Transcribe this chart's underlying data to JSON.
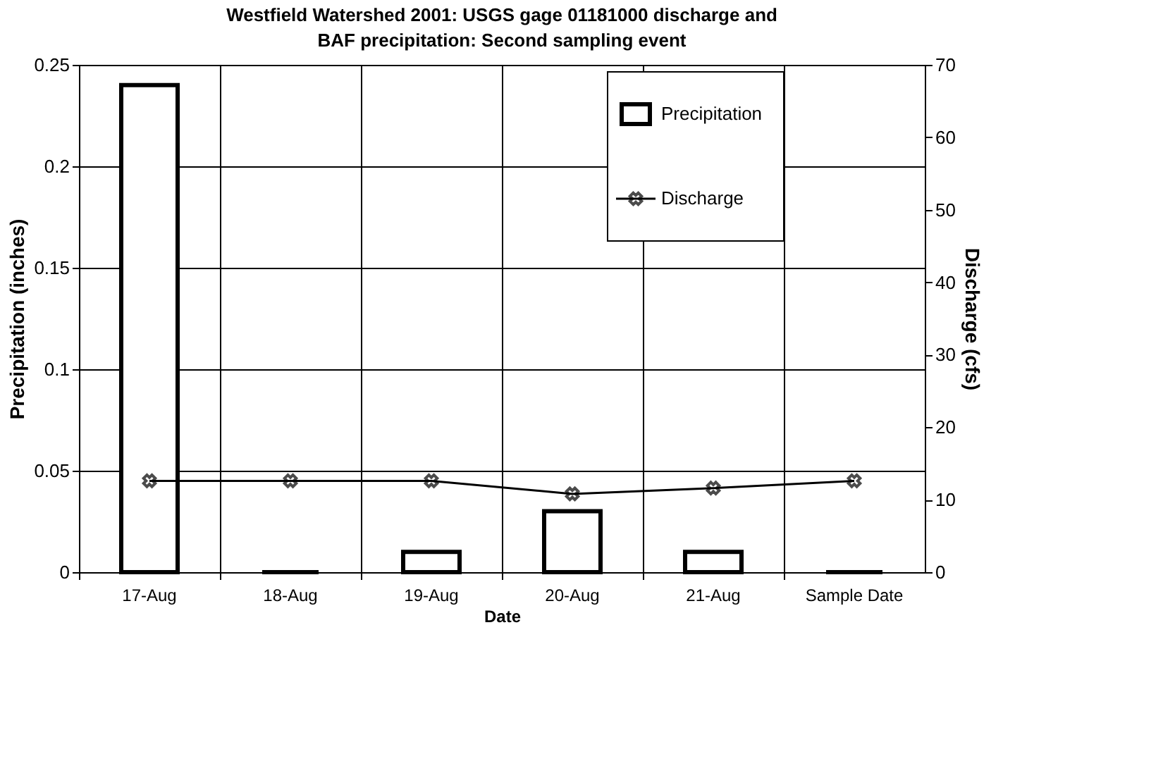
{
  "chart_data": {
    "type": "bar",
    "title": "Westfield Watershed 2001: USGS gage 01181000 discharge and BAF precipitation: Second sampling event",
    "xlabel": "Date",
    "ylabel": "Precipitation (inches)",
    "y2label": "Discharge (cfs)",
    "categories": [
      "17-Aug",
      "18-Aug",
      "19-Aug",
      "20-Aug",
      "21-Aug",
      "Sample Date"
    ],
    "series": [
      {
        "name": "Precipitation",
        "color": "#000000",
        "values": [
          0.24,
          0,
          0.01,
          0.03,
          0.01,
          0
        ]
      },
      {
        "name": "Discharge",
        "type": "line",
        "axis": "y2",
        "color": "#000000",
        "marker": "cross",
        "values": [
          12.6,
          12.6,
          12.6,
          10.8,
          11.6,
          12.6
        ]
      }
    ],
    "ylim": [
      0,
      0.25
    ],
    "yticks": [
      0,
      0.05,
      0.1,
      0.15,
      0.2,
      0.25
    ],
    "y2lim": [
      0,
      70
    ],
    "y2ticks": [
      0,
      10,
      20,
      30,
      40,
      50,
      60,
      70
    ],
    "grid": true,
    "legend": "top right"
  }
}
